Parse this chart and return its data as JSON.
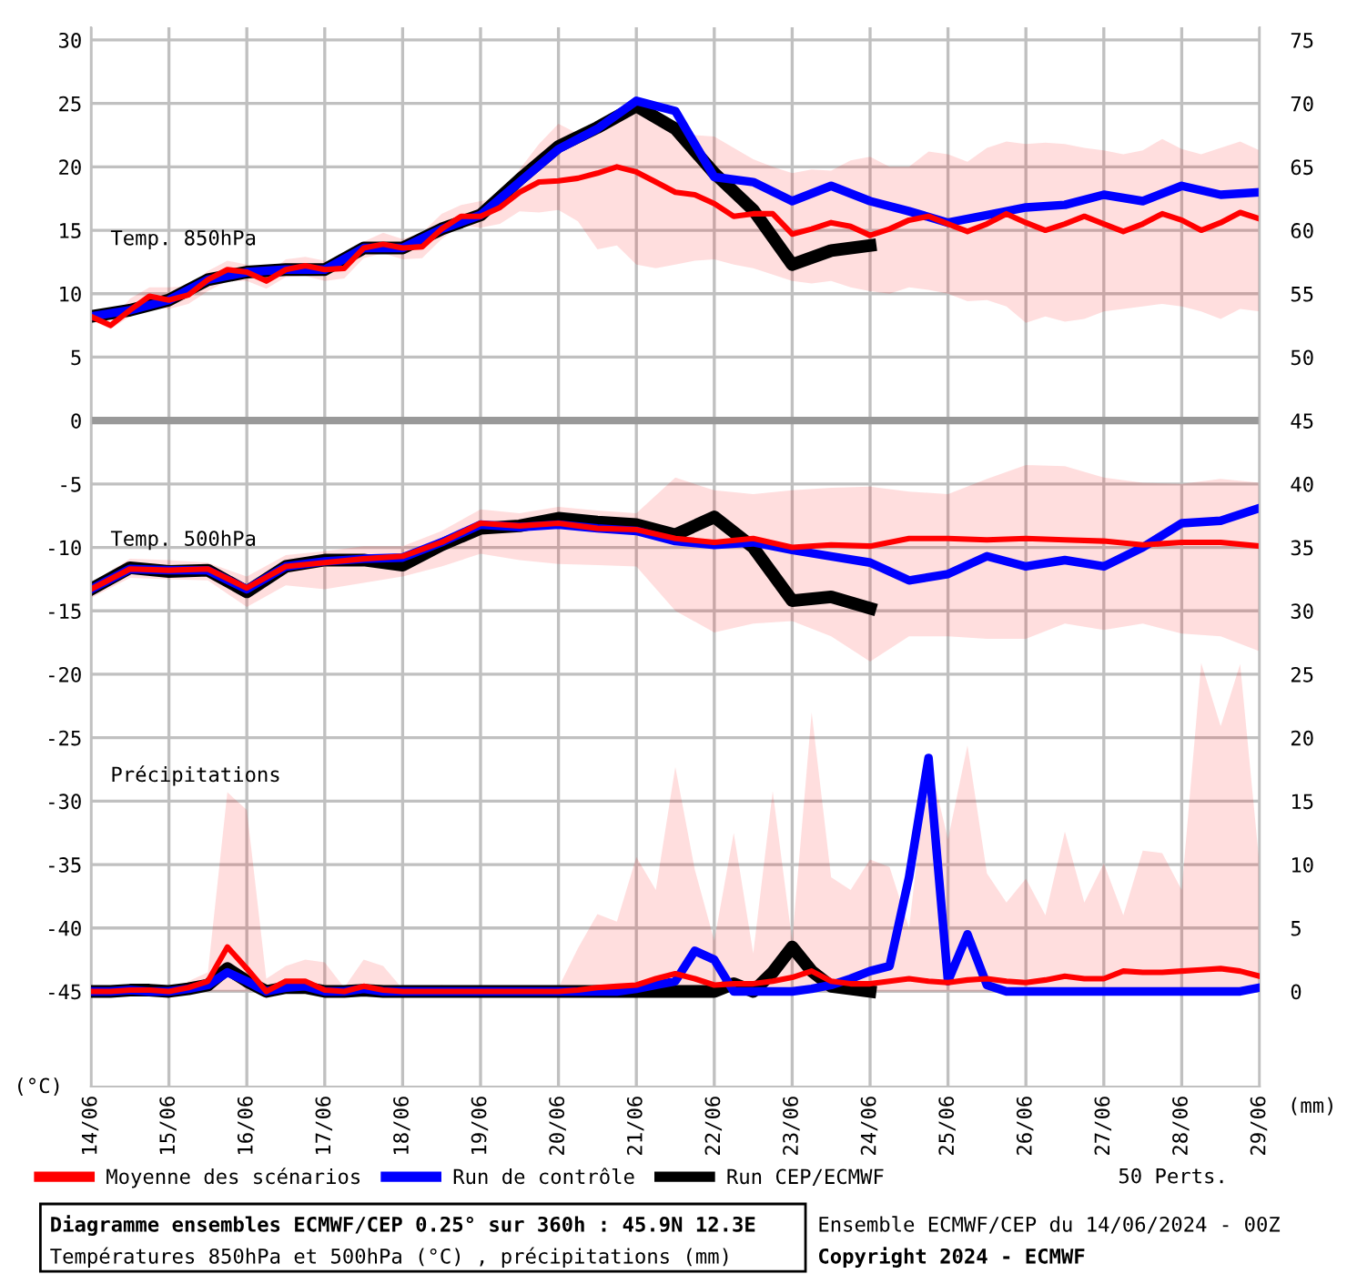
{
  "chart_data": {
    "type": "line",
    "title": "Diagramme ensembles ECMWF/CEP 0.25° sur 360h : 45.9N 12.3E",
    "subtitle": "Températures 850hPa et 500hPa (°C) , précipitations (mm)",
    "ylabel": "(°C)",
    "y2label": "(mm)",
    "annotations": [
      "Temp. 850hPa",
      "Temp. 500hPa",
      "Précipitations",
      "50 Perts.",
      "Ensemble ECMWF/CEP du 14/06/2024 - 00Z",
      "Copyright 2024 - ECMWF"
    ],
    "x": [
      "2024-06-14T00:00",
      "2024-06-14T06:00",
      "2024-06-14T12:00",
      "2024-06-14T18:00",
      "2024-06-15T00:00",
      "2024-06-15T06:00",
      "2024-06-15T12:00",
      "2024-06-15T18:00",
      "2024-06-16T00:00",
      "2024-06-16T06:00",
      "2024-06-16T12:00",
      "2024-06-16T18:00",
      "2024-06-17T00:00",
      "2024-06-17T06:00",
      "2024-06-17T12:00",
      "2024-06-17T18:00",
      "2024-06-18T00:00",
      "2024-06-18T06:00",
      "2024-06-18T12:00",
      "2024-06-18T18:00",
      "2024-06-19T00:00",
      "2024-06-19T06:00",
      "2024-06-19T12:00",
      "2024-06-19T18:00",
      "2024-06-20T00:00",
      "2024-06-20T06:00",
      "2024-06-20T12:00",
      "2024-06-20T18:00",
      "2024-06-21T00:00",
      "2024-06-21T06:00",
      "2024-06-21T12:00",
      "2024-06-21T18:00",
      "2024-06-22T00:00",
      "2024-06-22T06:00",
      "2024-06-22T12:00",
      "2024-06-22T18:00",
      "2024-06-23T00:00",
      "2024-06-23T06:00",
      "2024-06-23T12:00",
      "2024-06-23T18:00",
      "2024-06-24T00:00",
      "2024-06-24T06:00",
      "2024-06-24T12:00",
      "2024-06-24T18:00",
      "2024-06-25T00:00",
      "2024-06-25T06:00",
      "2024-06-25T12:00",
      "2024-06-25T18:00",
      "2024-06-26T00:00",
      "2024-06-26T06:00",
      "2024-06-26T12:00",
      "2024-06-26T18:00",
      "2024-06-27T00:00",
      "2024-06-27T06:00",
      "2024-06-27T12:00",
      "2024-06-27T18:00",
      "2024-06-28T00:00",
      "2024-06-28T06:00",
      "2024-06-28T12:00",
      "2024-06-28T18:00",
      "2024-06-29T00:00"
    ],
    "xlim": [
      "2024-06-14",
      "2024-06-29"
    ],
    "xticks": [
      {
        "value": "2024-06-14",
        "label": "14/06"
      },
      {
        "value": "2024-06-15",
        "label": "15/06"
      },
      {
        "value": "2024-06-16",
        "label": "16/06"
      },
      {
        "value": "2024-06-17",
        "label": "17/06"
      },
      {
        "value": "2024-06-18",
        "label": "18/06"
      },
      {
        "value": "2024-06-19",
        "label": "19/06"
      },
      {
        "value": "2024-06-20",
        "label": "20/06"
      },
      {
        "value": "2024-06-21",
        "label": "21/06"
      },
      {
        "value": "2024-06-22",
        "label": "22/06"
      },
      {
        "value": "2024-06-23",
        "label": "23/06"
      },
      {
        "value": "2024-06-24",
        "label": "24/06"
      },
      {
        "value": "2024-06-25",
        "label": "25/06"
      },
      {
        "value": "2024-06-26",
        "label": "26/06"
      },
      {
        "value": "2024-06-27",
        "label": "27/06"
      },
      {
        "value": "2024-06-28",
        "label": "28/06"
      },
      {
        "value": "2024-06-29",
        "label": "29/06"
      }
    ],
    "ylim": [
      -52.5,
      31
    ],
    "yticks": [
      30,
      25,
      20,
      15,
      10,
      5,
      0,
      -5,
      -10,
      -15,
      -20,
      -25,
      -30,
      -35,
      -40,
      -45
    ],
    "y2lim": [
      -7.5,
      76
    ],
    "y2ticks": [
      75,
      70,
      65,
      60,
      55,
      50,
      45,
      40,
      35,
      30,
      25,
      20,
      15,
      10,
      5,
      0
    ],
    "grid": true,
    "legend": "bottom",
    "marker": "none",
    "line_style": "solid",
    "ref_lines": [
      {
        "axis": "y",
        "value": 0,
        "color": "#999999"
      }
    ],
    "series": [
      {
        "name": "Moyenne des scénarios",
        "color": "#ff0000",
        "values": [
          8.2,
          7.5,
          8.7,
          9.8,
          9.5,
          9.9,
          11.1,
          11.9,
          11.7,
          11.0,
          11.9,
          12.2,
          11.9,
          12.0,
          13.6,
          13.9,
          13.6,
          13.7,
          15.1,
          16.1,
          16.1,
          16.8,
          18.0,
          18.8,
          18.9,
          19.1,
          19.5,
          20.0,
          19.6,
          18.8,
          18.0,
          17.8,
          17.1,
          16.1,
          16.3,
          16.3,
          14.7,
          15.1,
          15.6,
          15.3,
          14.6,
          15.1,
          15.8,
          16.1,
          15.5,
          14.9,
          15.5,
          16.3,
          15.6,
          15.0,
          15.5,
          16.1,
          15.5,
          14.9,
          15.5,
          16.3,
          15.8,
          15.0,
          15.6,
          16.4,
          15.9
        ],
        "lower": [
          7.9,
          7.2,
          8.2,
          9.0,
          8.8,
          9.2,
          10.2,
          11.0,
          11.0,
          10.4,
          11.3,
          11.4,
          11.0,
          11.2,
          12.8,
          13.2,
          12.7,
          12.8,
          14.3,
          15.4,
          15.2,
          15.5,
          16.5,
          16.4,
          16.6,
          15.7,
          13.5,
          13.8,
          12.3,
          12.0,
          12.3,
          12.6,
          12.7,
          12.3,
          12.0,
          11.5,
          11.0,
          10.8,
          11.0,
          10.5,
          10.2,
          10.0,
          10.5,
          10.3,
          10.0,
          9.4,
          9.5,
          9.0,
          7.7,
          8.2,
          7.8,
          8.0,
          8.6,
          8.8,
          9.0,
          9.2,
          9.0,
          8.6,
          8.0,
          8.8,
          8.6
        ],
        "upper": [
          8.4,
          7.8,
          9.6,
          10.5,
          10.5,
          10.6,
          11.8,
          12.6,
          12.3,
          11.5,
          12.7,
          12.9,
          12.6,
          12.5,
          14.1,
          14.8,
          14.3,
          14.8,
          16.3,
          17.0,
          17.3,
          17.6,
          19.8,
          21.8,
          23.4,
          22.6,
          23.2,
          24.3,
          24.6,
          24.0,
          23.3,
          22.5,
          22.4,
          21.5,
          20.6,
          20.0,
          19.5,
          19.8,
          19.7,
          20.5,
          20.8,
          20.0,
          20.0,
          21.2,
          21.0,
          20.4,
          21.5,
          22.0,
          21.8,
          21.9,
          21.8,
          21.5,
          21.3,
          21.0,
          21.3,
          22.2,
          21.4,
          21.0,
          21.5,
          22.0,
          21.3
        ]
      },
      {
        "name": "Run de contrôle",
        "color": "#0000ff",
        "x": [
          "2024-06-14T00:00",
          "2024-06-14T12:00",
          "2024-06-15T00:00",
          "2024-06-15T12:00",
          "2024-06-16T00:00",
          "2024-06-16T12:00",
          "2024-06-17T00:00",
          "2024-06-17T12:00",
          "2024-06-18T00:00",
          "2024-06-18T12:00",
          "2024-06-19T00:00",
          "2024-06-19T12:00",
          "2024-06-20T00:00",
          "2024-06-20T12:00",
          "2024-06-21T00:00",
          "2024-06-21T12:00",
          "2024-06-22T00:00",
          "2024-06-22T12:00",
          "2024-06-23T00:00",
          "2024-06-23T12:00",
          "2024-06-24T00:00",
          "2024-06-24T12:00",
          "2024-06-25T00:00",
          "2024-06-25T12:00",
          "2024-06-26T00:00",
          "2024-06-26T12:00",
          "2024-06-27T00:00",
          "2024-06-27T12:00",
          "2024-06-28T00:00",
          "2024-06-28T12:00",
          "2024-06-29T00:00"
        ],
        "values": [
          8.2,
          8.7,
          9.5,
          11.1,
          11.7,
          11.9,
          11.9,
          13.6,
          13.6,
          15.1,
          16.2,
          18.8,
          21.4,
          23.0,
          25.2,
          24.4,
          19.2,
          18.8,
          17.3,
          18.5,
          17.3,
          16.5,
          15.6,
          16.2,
          16.8,
          17.0,
          17.8,
          17.3,
          18.5,
          17.8,
          18.0
        ]
      },
      {
        "name": "Run CEP/ECMWF",
        "color": "#000000",
        "x": [
          "2024-06-14T00:00",
          "2024-06-14T12:00",
          "2024-06-15T00:00",
          "2024-06-15T12:00",
          "2024-06-16T00:00",
          "2024-06-16T12:00",
          "2024-06-17T00:00",
          "2024-06-17T12:00",
          "2024-06-18T00:00",
          "2024-06-18T12:00",
          "2024-06-19T00:00",
          "2024-06-19T12:00",
          "2024-06-20T00:00",
          "2024-06-20T12:00",
          "2024-06-21T00:00",
          "2024-06-21T12:00",
          "2024-06-22T00:00",
          "2024-06-22T12:00",
          "2024-06-23T00:00",
          "2024-06-23T12:00",
          "2024-06-24T00:00"
        ],
        "values": [
          8.2,
          8.7,
          9.5,
          11.1,
          11.7,
          11.9,
          11.9,
          13.6,
          13.6,
          15.1,
          16.2,
          19.0,
          21.6,
          23.1,
          24.8,
          23.0,
          19.5,
          16.6,
          12.3,
          13.4,
          13.8
        ]
      },
      {
        "color": "#ff0000",
        "x": [
          "2024-06-14T00:00",
          "2024-06-14T12:00",
          "2024-06-15T00:00",
          "2024-06-15T12:00",
          "2024-06-16T00:00",
          "2024-06-16T12:00",
          "2024-06-17T00:00",
          "2024-06-17T12:00",
          "2024-06-18T00:00",
          "2024-06-18T12:00",
          "2024-06-19T00:00",
          "2024-06-19T12:00",
          "2024-06-20T00:00",
          "2024-06-20T12:00",
          "2024-06-21T00:00",
          "2024-06-21T12:00",
          "2024-06-22T00:00",
          "2024-06-22T12:00",
          "2024-06-23T00:00",
          "2024-06-23T12:00",
          "2024-06-24T00:00",
          "2024-06-24T12:00",
          "2024-06-25T00:00",
          "2024-06-25T12:00",
          "2024-06-26T00:00",
          "2024-06-26T12:00",
          "2024-06-27T00:00",
          "2024-06-27T12:00",
          "2024-06-28T00:00",
          "2024-06-28T12:00",
          "2024-06-29T00:00"
        ],
        "values": [
          -13.3,
          -11.7,
          -11.8,
          -11.7,
          -13.2,
          -11.5,
          -11.2,
          -10.9,
          -10.7,
          -9.6,
          -8.1,
          -8.3,
          -8.1,
          -8.5,
          -8.6,
          -9.3,
          -9.6,
          -9.3,
          -10.0,
          -9.8,
          -9.9,
          -9.3,
          -9.3,
          -9.4,
          -9.3,
          -9.4,
          -9.5,
          -9.8,
          -9.6,
          -9.6,
          -9.9
        ],
        "lower": [
          -14.0,
          -12.4,
          -12.5,
          -12.6,
          -14.7,
          -13.0,
          -13.3,
          -12.8,
          -12.3,
          -11.5,
          -10.5,
          -11.0,
          -11.3,
          -11.4,
          -11.5,
          -15.0,
          -16.7,
          -16.0,
          -15.8,
          -17.0,
          -19.0,
          -17.0,
          -17.0,
          -17.2,
          -17.2,
          -16.0,
          -16.5,
          -16.0,
          -16.8,
          -17.0,
          -18.2
        ],
        "upper": [
          -12.8,
          -10.9,
          -11.0,
          -11.2,
          -12.3,
          -10.6,
          -10.3,
          -9.9,
          -9.9,
          -8.7,
          -7.0,
          -7.3,
          -6.8,
          -7.1,
          -7.3,
          -4.5,
          -5.5,
          -5.8,
          -5.5,
          -5.3,
          -5.2,
          -5.6,
          -5.8,
          -4.6,
          -3.5,
          -3.6,
          -4.5,
          -4.9,
          -5.0,
          -4.6,
          -4.9
        ]
      },
      {
        "color": "#0000ff",
        "x": [
          "2024-06-14T00:00",
          "2024-06-14T12:00",
          "2024-06-15T00:00",
          "2024-06-15T12:00",
          "2024-06-16T00:00",
          "2024-06-16T12:00",
          "2024-06-17T00:00",
          "2024-06-17T12:00",
          "2024-06-18T00:00",
          "2024-06-18T12:00",
          "2024-06-19T00:00",
          "2024-06-19T12:00",
          "2024-06-20T00:00",
          "2024-06-20T12:00",
          "2024-06-21T00:00",
          "2024-06-21T12:00",
          "2024-06-22T00:00",
          "2024-06-22T12:00",
          "2024-06-23T00:00",
          "2024-06-23T12:00",
          "2024-06-24T00:00",
          "2024-06-24T12:00",
          "2024-06-25T00:00",
          "2024-06-25T12:00",
          "2024-06-26T00:00",
          "2024-06-26T12:00",
          "2024-06-27T00:00",
          "2024-06-27T12:00",
          "2024-06-28T00:00",
          "2024-06-28T12:00",
          "2024-06-29T00:00"
        ],
        "values": [
          -13.3,
          -11.7,
          -11.8,
          -11.8,
          -13.3,
          -11.5,
          -11.1,
          -10.9,
          -10.8,
          -9.6,
          -8.2,
          -8.4,
          -8.2,
          -8.5,
          -8.7,
          -9.5,
          -9.8,
          -9.6,
          -10.2,
          -10.7,
          -11.2,
          -12.6,
          -12.1,
          -10.7,
          -11.5,
          -11.0,
          -11.5,
          -10.0,
          -8.1,
          -7.9,
          -6.9
        ]
      },
      {
        "color": "#000000",
        "x": [
          "2024-06-14T00:00",
          "2024-06-14T12:00",
          "2024-06-15T00:00",
          "2024-06-15T12:00",
          "2024-06-16T00:00",
          "2024-06-16T12:00",
          "2024-06-17T00:00",
          "2024-06-17T12:00",
          "2024-06-18T00:00",
          "2024-06-18T12:00",
          "2024-06-19T00:00",
          "2024-06-19T12:00",
          "2024-06-20T00:00",
          "2024-06-20T12:00",
          "2024-06-21T00:00",
          "2024-06-21T12:00",
          "2024-06-22T00:00",
          "2024-06-22T12:00",
          "2024-06-23T00:00",
          "2024-06-23T12:00",
          "2024-06-24T00:00"
        ],
        "values": [
          -13.3,
          -11.6,
          -11.9,
          -11.8,
          -13.5,
          -11.5,
          -11.0,
          -11.0,
          -11.4,
          -9.8,
          -8.5,
          -8.3,
          -7.7,
          -8.0,
          -8.2,
          -9.0,
          -7.6,
          -10.0,
          -14.2,
          -13.9,
          -14.8
        ]
      },
      {
        "color": "#ff0000",
        "axis": "y2",
        "values": [
          0,
          0,
          0.1,
          0.1,
          0,
          0.3,
          0.8,
          3.5,
          1.8,
          0,
          0.8,
          0.8,
          0.1,
          0,
          0.4,
          0.1,
          0,
          0,
          0,
          0,
          0,
          0,
          0,
          0,
          0,
          0.1,
          0.3,
          0.4,
          0.5,
          1.0,
          1.4,
          1.0,
          0.5,
          0.6,
          0.6,
          0.8,
          1.1,
          1.6,
          0.8,
          0.6,
          0.6,
          0.8,
          1.0,
          0.8,
          0.7,
          0.9,
          1.0,
          0.8,
          0.7,
          0.9,
          1.2,
          1.0,
          1.0,
          1.6,
          1.5,
          1.5,
          1.6,
          1.7,
          1.8,
          1.6,
          1.2
        ],
        "lower": [
          0,
          0,
          0,
          0,
          0,
          0,
          0,
          0,
          0,
          0,
          0,
          0,
          0,
          0,
          0,
          0,
          0,
          0,
          0,
          0,
          0,
          0,
          0,
          0,
          0,
          0,
          0,
          0,
          0,
          0,
          0,
          0,
          0,
          0,
          0,
          0,
          0,
          0,
          0,
          0,
          0,
          0,
          0,
          0,
          0,
          0,
          0,
          0,
          0,
          0,
          0,
          0,
          0,
          0,
          0,
          0,
          0,
          0,
          0,
          0,
          0
        ],
        "upper": [
          0,
          0.3,
          0.4,
          0.2,
          0.1,
          0.8,
          1.5,
          15.7,
          14.3,
          1.0,
          2.0,
          2.5,
          2.3,
          0.3,
          2.5,
          2.0,
          0.2,
          0.2,
          0.5,
          0.2,
          0.3,
          0.2,
          0.3,
          0.2,
          0.3,
          3.4,
          6.1,
          5.5,
          10.6,
          8.0,
          17.7,
          9.6,
          4.0,
          12.5,
          3.0,
          15.8,
          4.0,
          22.0,
          9.0,
          8.0,
          10.4,
          9.8,
          5.0,
          18.4,
          12.0,
          19.4,
          9.3,
          7.0,
          8.9,
          6.0,
          12.6,
          7.0,
          10.1,
          6.0,
          11.1,
          10.9,
          8.0,
          25.9,
          20.9,
          25.8,
          9.9
        ]
      },
      {
        "color": "#0000ff",
        "axis": "y2",
        "values": [
          0,
          0,
          0.1,
          0,
          0,
          0.2,
          0.5,
          1.5,
          0.8,
          0,
          0.3,
          0.4,
          0,
          0,
          0.2,
          0,
          0,
          0,
          0,
          0,
          0,
          0,
          0,
          0,
          0,
          0,
          0,
          0,
          0.2,
          0.5,
          0.8,
          3.2,
          2.5,
          0,
          0,
          0,
          0,
          0.2,
          0.5,
          1.0,
          1.6,
          2.0,
          9.0,
          18.4,
          0.8,
          4.5,
          0.5,
          0,
          0,
          0,
          0,
          0,
          0,
          0,
          0,
          0,
          0,
          0,
          0,
          0,
          0.3
        ]
      },
      {
        "color": "#000000",
        "axis": "y2",
        "x": [
          "2024-06-14T00:00",
          "2024-06-14T06:00",
          "2024-06-14T12:00",
          "2024-06-14T18:00",
          "2024-06-15T00:00",
          "2024-06-15T06:00",
          "2024-06-15T12:00",
          "2024-06-15T18:00",
          "2024-06-16T00:00",
          "2024-06-16T06:00",
          "2024-06-16T12:00",
          "2024-06-16T18:00",
          "2024-06-17T00:00",
          "2024-06-17T06:00",
          "2024-06-17T12:00",
          "2024-06-17T18:00",
          "2024-06-18T00:00",
          "2024-06-18T06:00",
          "2024-06-18T12:00",
          "2024-06-18T18:00",
          "2024-06-19T00:00",
          "2024-06-19T06:00",
          "2024-06-19T12:00",
          "2024-06-19T18:00",
          "2024-06-20T00:00",
          "2024-06-20T06:00",
          "2024-06-20T12:00",
          "2024-06-20T18:00",
          "2024-06-21T00:00",
          "2024-06-21T06:00",
          "2024-06-21T12:00",
          "2024-06-21T18:00",
          "2024-06-22T00:00",
          "2024-06-22T06:00",
          "2024-06-22T12:00",
          "2024-06-22T18:00",
          "2024-06-23T00:00",
          "2024-06-23T06:00",
          "2024-06-23T12:00",
          "2024-06-23T18:00",
          "2024-06-24T00:00"
        ],
        "values": [
          0,
          0,
          0.1,
          0.1,
          0,
          0.2,
          0.5,
          1.8,
          0.8,
          0,
          0.3,
          0.3,
          0,
          0,
          0.1,
          0,
          0,
          0,
          0,
          0,
          0,
          0,
          0,
          0,
          0,
          0,
          0,
          0,
          0,
          0,
          0,
          0,
          0,
          0.6,
          0,
          1.5,
          3.5,
          1.6,
          0.4,
          0.2,
          0
        ]
      }
    ]
  }
}
